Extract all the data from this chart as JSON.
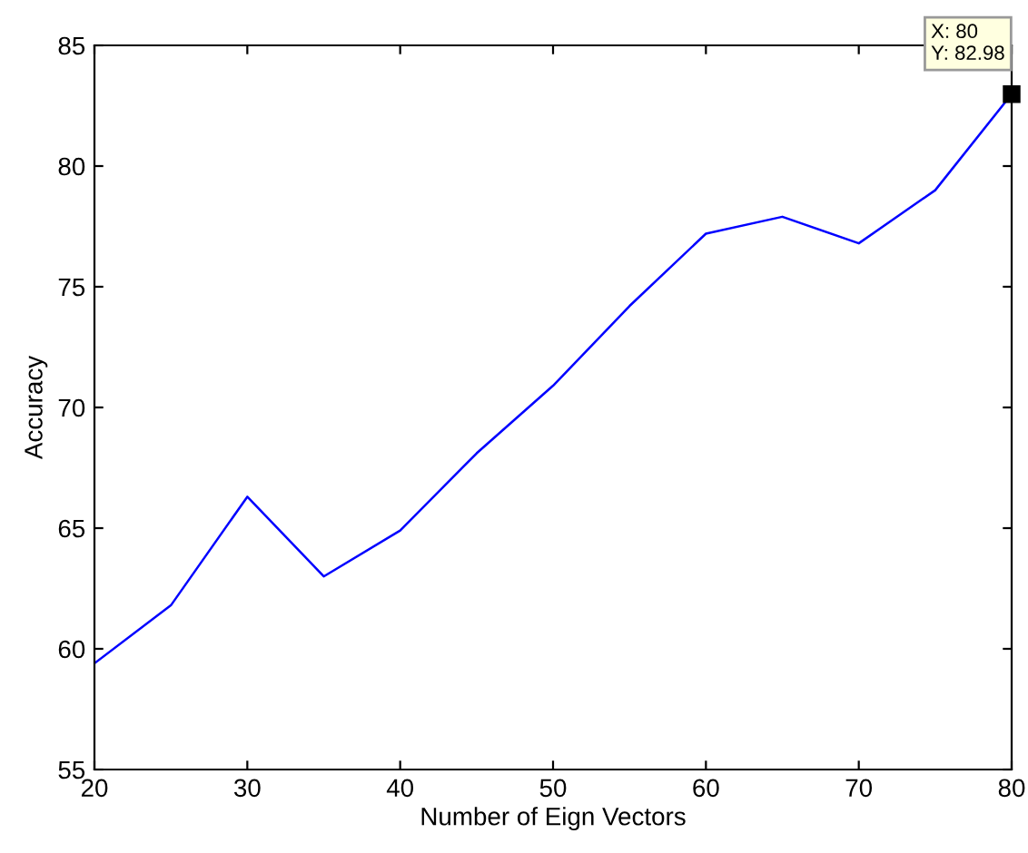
{
  "chart_data": {
    "type": "line",
    "xlabel": "Number of Eign Vectors",
    "ylabel": "Accuracy",
    "x": [
      20,
      25,
      30,
      35,
      40,
      45,
      50,
      55,
      60,
      65,
      70,
      75,
      80
    ],
    "series": [
      {
        "color": "#0000ff",
        "values": [
          59.4,
          61.8,
          66.3,
          63.0,
          64.9,
          68.1,
          70.9,
          74.2,
          77.2,
          77.9,
          76.8,
          79.0,
          82.98
        ]
      }
    ],
    "xlim": [
      20,
      80
    ],
    "xticks": [
      20,
      30,
      40,
      50,
      60,
      70,
      80
    ],
    "ylim": [
      55,
      85
    ],
    "yticks": [
      55,
      60,
      65,
      70,
      75,
      80,
      85
    ],
    "grid": false,
    "legend": false,
    "marker": "none",
    "line_style": "solid",
    "annotations": [
      {
        "text": "X: 80\nY: 82.98",
        "x": 80,
        "y": 82.98
      }
    ]
  }
}
